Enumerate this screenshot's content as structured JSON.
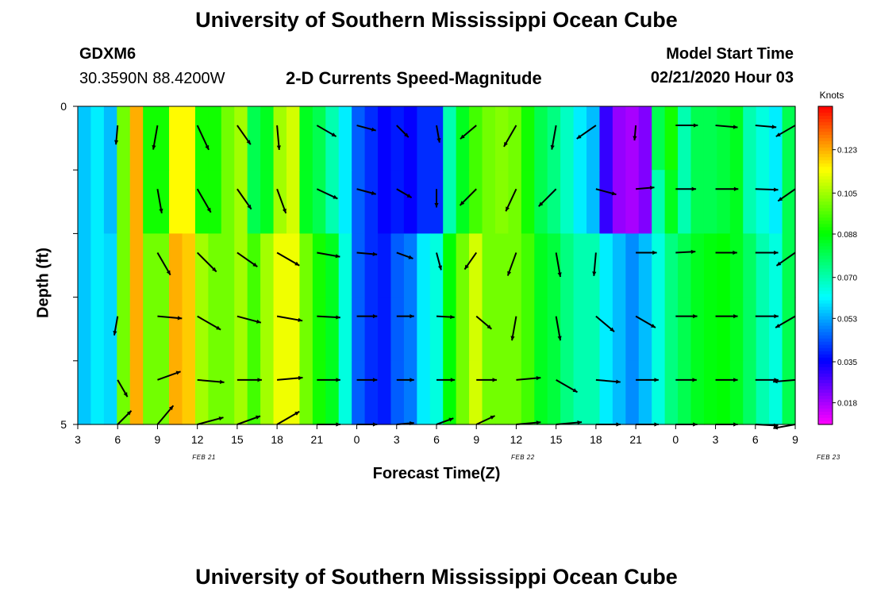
{
  "header": {
    "title_top": "University of Southern Mississippi Ocean Cube",
    "title_bottom": "University of Southern Mississippi Ocean Cube",
    "station_id": "GDXM6",
    "coordinates": "30.3590N 88.4200W",
    "plot_title": "2-D Currents Speed-Magnitude",
    "model_start_label": "Model Start Time",
    "model_start_value": "02/21/2020 Hour 03"
  },
  "chart_data": {
    "type": "heatmap",
    "title": "2-D Currents Speed-Magnitude",
    "xlabel": "Forecast Time(Z)",
    "ylabel": "Depth (ft)",
    "colorbar_label": "Knots",
    "colorbar_ticks": [
      "0.018",
      "0.035",
      "0.053",
      "0.070",
      "0.088",
      "0.105",
      "0.123"
    ],
    "colorbar_range": [
      0.009,
      0.141
    ],
    "x_range_hours": [
      0,
      54
    ],
    "x_tick_labels": [
      "3",
      "6",
      "9",
      "12",
      "15",
      "18",
      "21",
      "0",
      "3",
      "6",
      "9",
      "12",
      "15",
      "18",
      "21",
      "0",
      "3",
      "6",
      "9"
    ],
    "x_date_labels": [
      {
        "text": "FEB 21",
        "hour": 9.5
      },
      {
        "text": "FEB 22",
        "hour": 33.5
      },
      {
        "text": "FEB 23",
        "hour": 56.5
      }
    ],
    "y_range": [
      0,
      5
    ],
    "y_tick_labels": [
      {
        "text": "0",
        "depth": 0
      },
      {
        "text": "5",
        "depth": 5
      }
    ],
    "depth_rows": 5,
    "time_cols": 55,
    "speed_knots": [
      [
        0.056,
        0.06,
        0.055,
        0.1,
        0.123,
        0.09,
        0.09,
        0.115,
        0.115,
        0.09,
        0.09,
        0.1,
        0.105,
        0.08,
        0.085,
        0.105,
        0.11,
        0.085,
        0.08,
        0.07,
        0.06,
        0.045,
        0.04,
        0.035,
        0.038,
        0.035,
        0.04,
        0.04,
        0.07,
        0.085,
        0.095,
        0.1,
        0.102,
        0.1,
        0.09,
        0.08,
        0.075,
        0.068,
        0.06,
        0.055,
        0.03,
        0.02,
        0.018,
        0.022,
        0.08,
        0.09,
        0.07,
        0.08,
        0.08,
        0.082,
        0.085,
        0.07,
        0.065,
        0.06,
        0.08
      ],
      [
        0.056,
        0.06,
        0.055,
        0.1,
        0.123,
        0.09,
        0.09,
        0.115,
        0.115,
        0.09,
        0.09,
        0.1,
        0.105,
        0.08,
        0.085,
        0.105,
        0.11,
        0.085,
        0.08,
        0.07,
        0.06,
        0.045,
        0.04,
        0.035,
        0.038,
        0.035,
        0.04,
        0.04,
        0.07,
        0.085,
        0.095,
        0.1,
        0.102,
        0.1,
        0.09,
        0.08,
        0.075,
        0.068,
        0.06,
        0.055,
        0.03,
        0.02,
        0.018,
        0.022,
        0.07,
        0.085,
        0.07,
        0.08,
        0.08,
        0.082,
        0.085,
        0.07,
        0.065,
        0.06,
        0.08
      ],
      [
        0.056,
        0.06,
        0.058,
        0.1,
        0.123,
        0.1,
        0.1,
        0.123,
        0.12,
        0.105,
        0.1,
        0.1,
        0.105,
        0.095,
        0.105,
        0.113,
        0.113,
        0.1,
        0.09,
        0.085,
        0.065,
        0.045,
        0.04,
        0.038,
        0.045,
        0.048,
        0.06,
        0.065,
        0.088,
        0.1,
        0.11,
        0.1,
        0.1,
        0.1,
        0.095,
        0.085,
        0.082,
        0.075,
        0.07,
        0.07,
        0.06,
        0.055,
        0.05,
        0.055,
        0.065,
        0.075,
        0.08,
        0.085,
        0.087,
        0.088,
        0.085,
        0.078,
        0.07,
        0.065,
        0.08
      ],
      [
        0.056,
        0.06,
        0.058,
        0.1,
        0.123,
        0.1,
        0.1,
        0.123,
        0.12,
        0.105,
        0.1,
        0.1,
        0.105,
        0.095,
        0.105,
        0.113,
        0.113,
        0.1,
        0.09,
        0.085,
        0.065,
        0.045,
        0.04,
        0.038,
        0.045,
        0.048,
        0.06,
        0.065,
        0.088,
        0.1,
        0.11,
        0.1,
        0.1,
        0.1,
        0.095,
        0.085,
        0.082,
        0.075,
        0.07,
        0.07,
        0.06,
        0.055,
        0.05,
        0.055,
        0.065,
        0.075,
        0.08,
        0.085,
        0.087,
        0.088,
        0.085,
        0.078,
        0.07,
        0.065,
        0.08
      ],
      [
        0.056,
        0.06,
        0.058,
        0.1,
        0.123,
        0.1,
        0.1,
        0.123,
        0.12,
        0.105,
        0.1,
        0.1,
        0.105,
        0.095,
        0.105,
        0.113,
        0.113,
        0.1,
        0.09,
        0.085,
        0.065,
        0.045,
        0.04,
        0.038,
        0.045,
        0.048,
        0.06,
        0.065,
        0.088,
        0.1,
        0.11,
        0.1,
        0.1,
        0.1,
        0.095,
        0.085,
        0.082,
        0.075,
        0.07,
        0.07,
        0.06,
        0.055,
        0.05,
        0.055,
        0.065,
        0.075,
        0.08,
        0.085,
        0.087,
        0.088,
        0.085,
        0.078,
        0.07,
        0.065,
        0.08
      ]
    ],
    "vectors": [
      {
        "hour": 3,
        "depth": 0.3,
        "angle": 95,
        "speed": 0.055
      },
      {
        "hour": 6,
        "depth": 0.3,
        "angle": 100,
        "speed": 0.1
      },
      {
        "hour": 9,
        "depth": 0.3,
        "angle": 65,
        "speed": 0.12
      },
      {
        "hour": 12,
        "depth": 0.3,
        "angle": 55,
        "speed": 0.09
      },
      {
        "hour": 15,
        "depth": 0.3,
        "angle": 85,
        "speed": 0.1
      },
      {
        "hour": 18,
        "depth": 0.3,
        "angle": 30,
        "speed": 0.08
      },
      {
        "hour": 21,
        "depth": 0.3,
        "angle": 15,
        "speed": 0.06
      },
      {
        "hour": 24,
        "depth": 0.3,
        "angle": 45,
        "speed": 0.035
      },
      {
        "hour": 27,
        "depth": 0.3,
        "angle": 80,
        "speed": 0.04
      },
      {
        "hour": 30,
        "depth": 0.3,
        "angle": 140,
        "speed": 0.07
      },
      {
        "hour": 33,
        "depth": 0.3,
        "angle": 120,
        "speed": 0.1
      },
      {
        "hour": 36,
        "depth": 0.3,
        "angle": 100,
        "speed": 0.1
      },
      {
        "hour": 39,
        "depth": 0.3,
        "angle": 145,
        "speed": 0.09
      },
      {
        "hour": 42,
        "depth": 0.3,
        "angle": 95,
        "speed": 0.02
      },
      {
        "hour": 45,
        "depth": 0.3,
        "angle": 0,
        "speed": 0.08
      },
      {
        "hour": 48,
        "depth": 0.3,
        "angle": 5,
        "speed": 0.08
      },
      {
        "hour": 51,
        "depth": 0.3,
        "angle": 5,
        "speed": 0.07
      },
      {
        "hour": 54,
        "depth": 0.3,
        "angle": 150,
        "speed": 0.08
      },
      {
        "hour": 6,
        "depth": 1.3,
        "angle": 80,
        "speed": 0.1
      },
      {
        "hour": 9,
        "depth": 1.3,
        "angle": 60,
        "speed": 0.12
      },
      {
        "hour": 12,
        "depth": 1.3,
        "angle": 55,
        "speed": 0.1
      },
      {
        "hour": 15,
        "depth": 1.3,
        "angle": 70,
        "speed": 0.11
      },
      {
        "hour": 18,
        "depth": 1.3,
        "angle": 25,
        "speed": 0.085
      },
      {
        "hour": 21,
        "depth": 1.3,
        "angle": 15,
        "speed": 0.06
      },
      {
        "hour": 24,
        "depth": 1.3,
        "angle": 30,
        "speed": 0.038
      },
      {
        "hour": 27,
        "depth": 1.3,
        "angle": 90,
        "speed": 0.048
      },
      {
        "hour": 30,
        "depth": 1.3,
        "angle": 135,
        "speed": 0.088
      },
      {
        "hour": 33,
        "depth": 1.3,
        "angle": 115,
        "speed": 0.1
      },
      {
        "hour": 36,
        "depth": 1.3,
        "angle": 135,
        "speed": 0.1
      },
      {
        "hour": 39,
        "depth": 1.3,
        "angle": 15,
        "speed": 0.07
      },
      {
        "hour": 42,
        "depth": 1.3,
        "angle": -5,
        "speed": 0.05
      },
      {
        "hour": 45,
        "depth": 1.3,
        "angle": 0,
        "speed": 0.065
      },
      {
        "hour": 48,
        "depth": 1.3,
        "angle": 0,
        "speed": 0.085
      },
      {
        "hour": 51,
        "depth": 1.3,
        "angle": 2,
        "speed": 0.085
      },
      {
        "hour": 54,
        "depth": 1.3,
        "angle": 145,
        "speed": 0.07
      },
      {
        "hour": 6,
        "depth": 2.3,
        "angle": 60,
        "speed": 0.11
      },
      {
        "hour": 9,
        "depth": 2.3,
        "angle": 45,
        "speed": 0.12
      },
      {
        "hour": 12,
        "depth": 2.3,
        "angle": 35,
        "speed": 0.1
      },
      {
        "hour": 15,
        "depth": 2.3,
        "angle": 30,
        "speed": 0.11
      },
      {
        "hour": 18,
        "depth": 2.3,
        "angle": 10,
        "speed": 0.09
      },
      {
        "hour": 21,
        "depth": 2.3,
        "angle": 5,
        "speed": 0.065
      },
      {
        "hour": 24,
        "depth": 2.3,
        "angle": 20,
        "speed": 0.04
      },
      {
        "hour": 27,
        "depth": 2.3,
        "angle": 75,
        "speed": 0.045
      },
      {
        "hour": 30,
        "depth": 2.3,
        "angle": 125,
        "speed": 0.065
      },
      {
        "hour": 33,
        "depth": 2.3,
        "angle": 110,
        "speed": 0.1
      },
      {
        "hour": 36,
        "depth": 2.3,
        "angle": 80,
        "speed": 0.1
      },
      {
        "hour": 39,
        "depth": 2.3,
        "angle": 95,
        "speed": 0.09
      },
      {
        "hour": 42,
        "depth": 2.3,
        "angle": 0,
        "speed": 0.07
      },
      {
        "hour": 45,
        "depth": 2.3,
        "angle": -3,
        "speed": 0.06
      },
      {
        "hour": 48,
        "depth": 2.3,
        "angle": 0,
        "speed": 0.075
      },
      {
        "hour": 51,
        "depth": 2.3,
        "angle": 0,
        "speed": 0.085
      },
      {
        "hour": 54,
        "depth": 2.3,
        "angle": 145,
        "speed": 0.085
      },
      {
        "hour": 3,
        "depth": 3.3,
        "angle": 100,
        "speed": 0.056
      },
      {
        "hour": 6,
        "depth": 3.3,
        "angle": 5,
        "speed": 0.1
      },
      {
        "hour": 9,
        "depth": 3.3,
        "angle": 30,
        "speed": 0.12
      },
      {
        "hour": 12,
        "depth": 3.3,
        "angle": 15,
        "speed": 0.1
      },
      {
        "hour": 15,
        "depth": 3.3,
        "angle": 10,
        "speed": 0.11
      },
      {
        "hour": 18,
        "depth": 3.3,
        "angle": 3,
        "speed": 0.09
      },
      {
        "hour": 21,
        "depth": 3.3,
        "angle": 0,
        "speed": 0.065
      },
      {
        "hour": 24,
        "depth": 3.3,
        "angle": 0,
        "speed": 0.04
      },
      {
        "hour": 27,
        "depth": 3.3,
        "angle": 3,
        "speed": 0.045
      },
      {
        "hour": 30,
        "depth": 3.3,
        "angle": 40,
        "speed": 0.06
      },
      {
        "hour": 33,
        "depth": 3.3,
        "angle": 100,
        "speed": 0.1
      },
      {
        "hour": 36,
        "depth": 3.3,
        "angle": 80,
        "speed": 0.1
      },
      {
        "hour": 39,
        "depth": 3.3,
        "angle": 40,
        "speed": 0.095
      },
      {
        "hour": 42,
        "depth": 3.3,
        "angle": 30,
        "speed": 0.085
      },
      {
        "hour": 45,
        "depth": 3.3,
        "angle": 0,
        "speed": 0.075
      },
      {
        "hour": 48,
        "depth": 3.3,
        "angle": 0,
        "speed": 0.08
      },
      {
        "hour": 51,
        "depth": 3.3,
        "angle": 0,
        "speed": 0.087
      },
      {
        "hour": 54,
        "depth": 3.3,
        "angle": 150,
        "speed": 0.085
      },
      {
        "hour": 3,
        "depth": 4.3,
        "angle": 60,
        "speed": 0.058
      },
      {
        "hour": 6,
        "depth": 4.3,
        "angle": -20,
        "speed": 0.1
      },
      {
        "hour": 9,
        "depth": 4.3,
        "angle": 5,
        "speed": 0.12
      },
      {
        "hour": 12,
        "depth": 4.3,
        "angle": 0,
        "speed": 0.1
      },
      {
        "hour": 15,
        "depth": 4.3,
        "angle": -5,
        "speed": 0.11
      },
      {
        "hour": 18,
        "depth": 4.3,
        "angle": 0,
        "speed": 0.09
      },
      {
        "hour": 21,
        "depth": 4.3,
        "angle": 0,
        "speed": 0.065
      },
      {
        "hour": 24,
        "depth": 4.3,
        "angle": 0,
        "speed": 0.04
      },
      {
        "hour": 27,
        "depth": 4.3,
        "angle": 0,
        "speed": 0.048
      },
      {
        "hour": 30,
        "depth": 4.3,
        "angle": 0,
        "speed": 0.065
      },
      {
        "hour": 33,
        "depth": 4.3,
        "angle": -5,
        "speed": 0.1
      },
      {
        "hour": 36,
        "depth": 4.3,
        "angle": 30,
        "speed": 0.1
      },
      {
        "hour": 39,
        "depth": 4.3,
        "angle": 5,
        "speed": 0.1
      },
      {
        "hour": 42,
        "depth": 4.3,
        "angle": 0,
        "speed": 0.085
      },
      {
        "hour": 45,
        "depth": 4.3,
        "angle": 0,
        "speed": 0.07
      },
      {
        "hour": 48,
        "depth": 4.3,
        "angle": 0,
        "speed": 0.08
      },
      {
        "hour": 51,
        "depth": 4.3,
        "angle": 0,
        "speed": 0.087
      },
      {
        "hour": 54,
        "depth": 4.3,
        "angle": 175,
        "speed": 0.08
      },
      {
        "hour": 3,
        "depth": 5.0,
        "angle": -45,
        "speed": 0.056
      },
      {
        "hour": 6,
        "depth": 5.0,
        "angle": -50,
        "speed": 0.1
      },
      {
        "hour": 9,
        "depth": 5.0,
        "angle": -15,
        "speed": 0.12
      },
      {
        "hour": 12,
        "depth": 5.0,
        "angle": -20,
        "speed": 0.1
      },
      {
        "hour": 15,
        "depth": 5.0,
        "angle": -30,
        "speed": 0.11
      },
      {
        "hour": 18,
        "depth": 5.0,
        "angle": 0,
        "speed": 0.09
      },
      {
        "hour": 21,
        "depth": 5.0,
        "angle": 0,
        "speed": 0.065
      },
      {
        "hour": 24,
        "depth": 5.0,
        "angle": -5,
        "speed": 0.04
      },
      {
        "hour": 27,
        "depth": 5.0,
        "angle": -20,
        "speed": 0.045
      },
      {
        "hour": 30,
        "depth": 5.0,
        "angle": -25,
        "speed": 0.065
      },
      {
        "hour": 33,
        "depth": 5.0,
        "angle": -5,
        "speed": 0.1
      },
      {
        "hour": 36,
        "depth": 5.0,
        "angle": -5,
        "speed": 0.11
      },
      {
        "hour": 39,
        "depth": 5.0,
        "angle": 0,
        "speed": 0.1
      },
      {
        "hour": 42,
        "depth": 5.0,
        "angle": 0,
        "speed": 0.085
      },
      {
        "hour": 45,
        "depth": 5.0,
        "angle": 0,
        "speed": 0.075
      },
      {
        "hour": 48,
        "depth": 5.0,
        "angle": 0,
        "speed": 0.08
      },
      {
        "hour": 51,
        "depth": 5.0,
        "angle": 3,
        "speed": 0.085
      },
      {
        "hour": 54,
        "depth": 5.0,
        "angle": 170,
        "speed": 0.08
      }
    ]
  }
}
